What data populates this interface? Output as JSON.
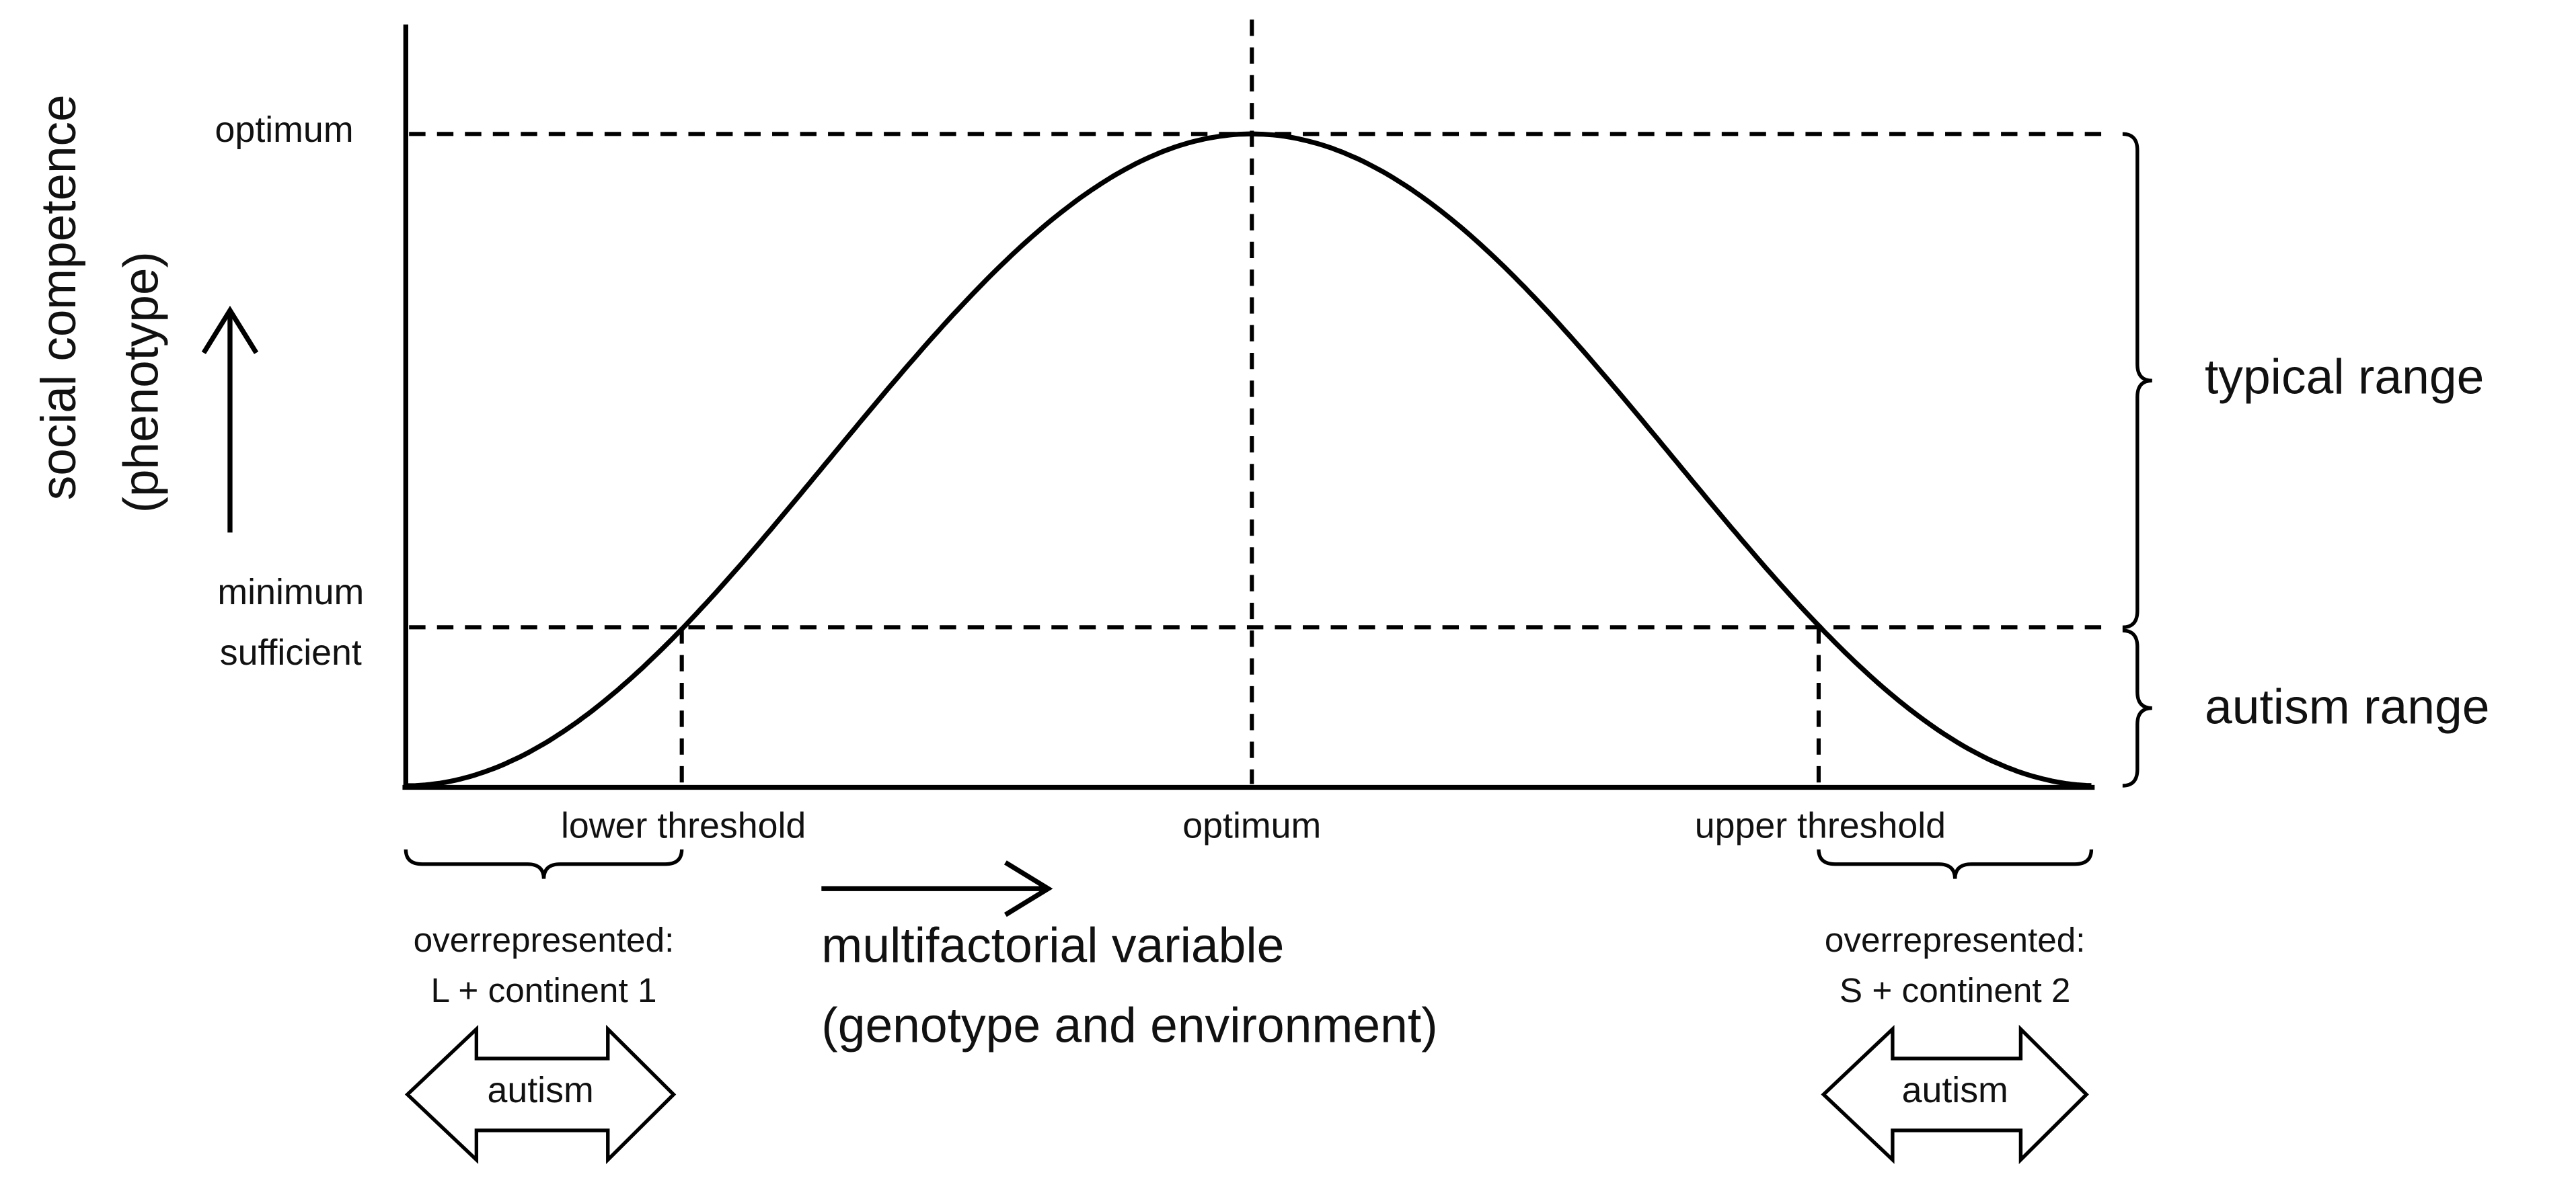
{
  "y_axis": {
    "title": [
      "social competence",
      "(phenotype)"
    ],
    "optimum_label": "optimum",
    "minimum_label": [
      "minimum",
      "sufficient"
    ]
  },
  "x_axis": {
    "title": [
      "multifactorial variable",
      "(genotype and environment)"
    ],
    "labels": [
      "lower threshold",
      "optimum",
      "upper threshold"
    ]
  },
  "ranges": [
    "typical range",
    "autism range"
  ],
  "groups": [
    {
      "note": [
        "overrepresented:",
        "L + continent 1"
      ],
      "arrow": "autism"
    },
    {
      "note": [
        "overrepresented:",
        "S + continent 2"
      ],
      "arrow": "autism"
    }
  ]
}
